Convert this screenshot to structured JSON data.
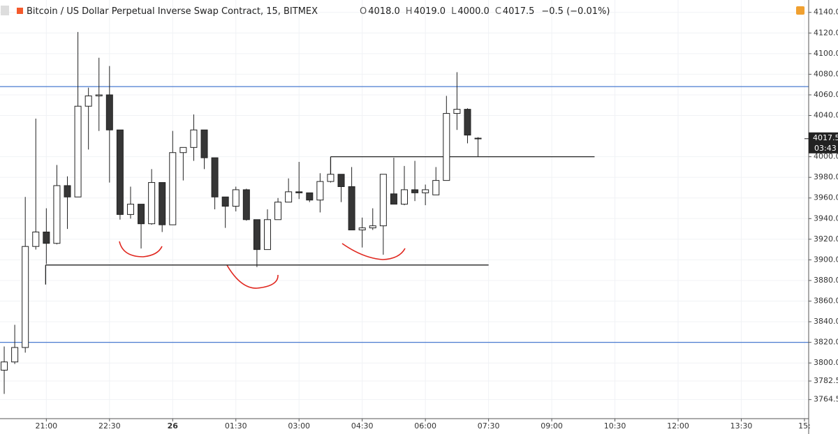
{
  "chart_data": {
    "type": "candlestick",
    "title": "Bitcoin / US Dollar Perpetual Inverse Swap Contract, 15, BITMEX",
    "ohlc_labels": [
      {
        "key": "O",
        "value": "4018.0"
      },
      {
        "key": "H",
        "value": "4019.0"
      },
      {
        "key": "L",
        "value": "4000.0"
      },
      {
        "key": "C",
        "value": "4017.5"
      }
    ],
    "change": "−0.5 (−0.01%)",
    "x": [
      1200,
      1215,
      1230,
      1245,
      1260,
      1275,
      1290,
      1305,
      1320,
      1335,
      1350,
      1365,
      1380,
      1395,
      1410,
      1425,
      1440,
      1455,
      1470,
      1485,
      1500,
      1515,
      1530,
      1545,
      1560,
      1575,
      1590,
      1605,
      1620,
      1635,
      1650,
      1665,
      1680,
      1695,
      1710,
      1725,
      1740,
      1755,
      1770,
      1785,
      1800,
      1815,
      1830,
      1845,
      1860,
      1875
    ],
    "open": [
      3793,
      3801,
      3815,
      3913,
      3927,
      3916,
      3972,
      3961,
      4049,
      4059,
      4060,
      4026,
      3944,
      3954,
      3935,
      3975,
      3934,
      4004,
      4009,
      4026,
      3999,
      3961,
      3952,
      3968,
      3939,
      3910,
      3939,
      3956,
      3966,
      3965,
      3958,
      3976,
      3983,
      3971,
      3929,
      3931,
      3933,
      3964,
      3954,
      3968,
      3965,
      3963,
      3977,
      4042,
      4046,
      4018
    ],
    "high": [
      3816,
      3837,
      3961,
      4037,
      3950,
      3992,
      3981,
      4121,
      4067,
      4096,
      4088,
      4026,
      3971,
      3954,
      3988,
      3975,
      4025,
      4009,
      4041,
      4026,
      3999,
      3961,
      3971,
      3969,
      3939,
      3949,
      3960,
      3979,
      3995,
      3965,
      3984,
      3998,
      3983,
      3990,
      3941,
      3950,
      3983,
      3999,
      3991,
      3996,
      3973,
      3990,
      4059,
      4082,
      4047,
      4019
    ],
    "low": [
      3770,
      3799,
      3810,
      3910,
      3896,
      3915,
      3930,
      3961,
      4007,
      4025,
      3975,
      3939,
      3940,
      3911,
      3934,
      3927,
      3934,
      3977,
      3996,
      3988,
      3949,
      3931,
      3947,
      3938,
      3893,
      3910,
      3939,
      3956,
      3959,
      3956,
      3946,
      3975,
      3956,
      3929,
      3912,
      3929,
      3905,
      3954,
      3953,
      3957,
      3953,
      3963,
      3977,
      4026,
      4013,
      4000
    ],
    "close": [
      3801,
      3815,
      3913,
      3927,
      3916,
      3972,
      3961,
      4049,
      4059,
      4060,
      4026,
      3944,
      3954,
      3935,
      3975,
      3934,
      4004,
      4009,
      4026,
      3999,
      3961,
      3952,
      3968,
      3939,
      3910,
      3939,
      3956,
      3966,
      3965,
      3958,
      3976,
      3983,
      3971,
      3929,
      3931,
      3933,
      3983,
      3954,
      3968,
      3965,
      3968,
      3977,
      4042,
      4046,
      4021,
      4017.5
    ],
    "up_color": "#ffffff",
    "down_color": "#363636",
    "xlim": [
      1194,
      2346
    ],
    "xticks": [
      {
        "value": 1260,
        "label": "21:00"
      },
      {
        "value": 1350,
        "label": "22:30"
      },
      {
        "value": 1440,
        "label": "26"
      },
      {
        "value": 1530,
        "label": "01:30"
      },
      {
        "value": 1620,
        "label": "03:00"
      },
      {
        "value": 1710,
        "label": "04:30"
      },
      {
        "value": 1800,
        "label": "06:00"
      },
      {
        "value": 1890,
        "label": "07:30"
      },
      {
        "value": 1980,
        "label": "09:00"
      },
      {
        "value": 2070,
        "label": "10:30"
      },
      {
        "value": 2160,
        "label": "12:00"
      },
      {
        "value": 2250,
        "label": "13:30"
      },
      {
        "value": 2340,
        "label": "15:"
      }
    ],
    "ylim": [
      3746,
      4152
    ],
    "yticks": [
      {
        "value": 4140,
        "label": "4140.0"
      },
      {
        "value": 4120,
        "label": "4120.0"
      },
      {
        "value": 4100,
        "label": "4100.0"
      },
      {
        "value": 4080,
        "label": "4080.0"
      },
      {
        "value": 4060,
        "label": "4060.0"
      },
      {
        "value": 4040,
        "label": "4040.0"
      },
      {
        "value": 4000,
        "label": "4000.0"
      },
      {
        "value": 3980,
        "label": "3980.0"
      },
      {
        "value": 3960,
        "label": "3960.0"
      },
      {
        "value": 3940,
        "label": "3940.0"
      },
      {
        "value": 3920,
        "label": "3920.0"
      },
      {
        "value": 3900,
        "label": "3900.0"
      },
      {
        "value": 3880,
        "label": "3880.0"
      },
      {
        "value": 3860,
        "label": "3860.0"
      },
      {
        "value": 3840,
        "label": "3840.0"
      },
      {
        "value": 3820,
        "label": "3820.0"
      },
      {
        "value": 3800,
        "label": "3800.0"
      },
      {
        "value": 3782.5,
        "label": "3782.5"
      },
      {
        "value": 3764.5,
        "label": "3764.5"
      }
    ],
    "grid": true,
    "countdown": "03:43",
    "hlines": [
      {
        "value": 4068,
        "color": "#4a7bd0"
      },
      {
        "value": 3820,
        "color": "#4a7bd0"
      }
    ],
    "segments": [
      {
        "value": 3895,
        "x": [
          1259,
          1890
        ],
        "color": "#222222"
      },
      {
        "value": 4000,
        "x": [
          1665,
          2041
        ],
        "color": "#222222"
      }
    ]
  }
}
